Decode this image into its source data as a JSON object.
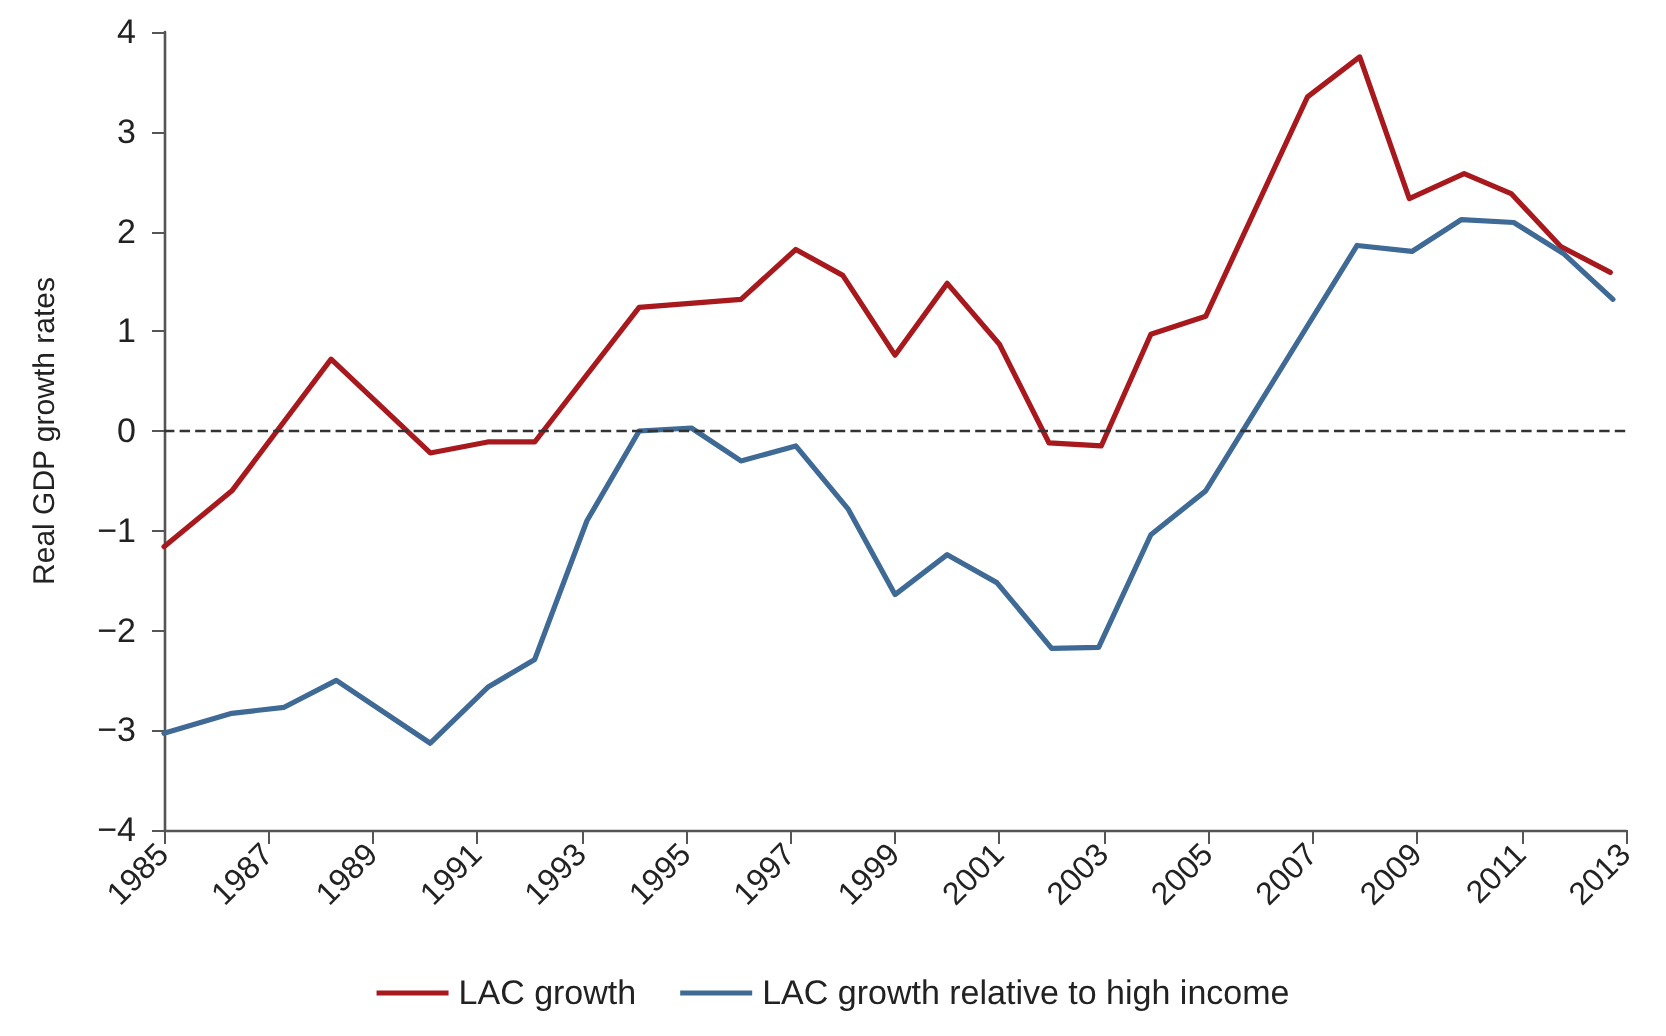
{
  "chart_data": {
    "type": "line",
    "ylabel": "Real GDP growth rates",
    "xlim": [
      1985,
      2013
    ],
    "xticks": [
      1985,
      1987,
      1989,
      1991,
      1993,
      1995,
      1997,
      1999,
      2001,
      2003,
      2005,
      2007,
      2009,
      2011,
      2013
    ],
    "ylim": [
      -4,
      4
    ],
    "yticks": [
      -4,
      -3,
      -2,
      -1,
      0,
      1,
      2,
      3,
      4
    ],
    "series": [
      {
        "name": "LAC growth",
        "color": "#a8191e",
        "x": [
          1985,
          1986.3,
          1988.2,
          1990.1,
          1991.2,
          1992.1,
          1994.1,
          1996.05,
          1997.1,
          1998.0,
          1999.0,
          2000.0,
          2001.0,
          2001.95,
          2002.95,
          2003.9,
          2004.95,
          2006.9,
          2007.9,
          2008.85,
          2009.9,
          2010.8,
          2011.75,
          2012.7
        ],
        "values": [
          -1.16,
          -0.6,
          0.72,
          -0.22,
          -0.11,
          -0.11,
          1.24,
          1.32,
          1.82,
          1.56,
          0.76,
          1.48,
          0.87,
          -0.12,
          -0.15,
          0.97,
          1.15,
          3.35,
          3.75,
          2.33,
          2.58,
          2.38,
          1.85,
          1.59
        ]
      },
      {
        "name": "LAC growth relative to high income",
        "color": "#3f6a96",
        "x": [
          1985,
          1986.3,
          1987.3,
          1988.3,
          1990.1,
          1991.2,
          1992.1,
          1993.1,
          1994.1,
          1995.1,
          1996.05,
          1997.1,
          1998.1,
          1999.0,
          2000.0,
          2000.95,
          2002.0,
          2002.9,
          2003.9,
          2004.95,
          2007.85,
          2008.9,
          2009.85,
          2010.85,
          2011.8,
          2012.75
        ],
        "values": [
          -3.03,
          -2.83,
          -2.77,
          -2.5,
          -3.13,
          -2.57,
          -2.29,
          -0.9,
          0.0,
          0.03,
          -0.3,
          -0.15,
          -0.78,
          -1.64,
          -1.24,
          -1.52,
          -2.18,
          -2.17,
          -1.04,
          -0.6,
          1.86,
          1.8,
          2.12,
          2.09,
          1.78,
          1.32
        ]
      }
    ],
    "ref_lines": [
      {
        "axis": "y",
        "value": 0,
        "color": "#333333",
        "line_style": "dashed"
      }
    ],
    "grid": false,
    "legend": "bottom",
    "marker": "none",
    "line_style": "solid"
  }
}
